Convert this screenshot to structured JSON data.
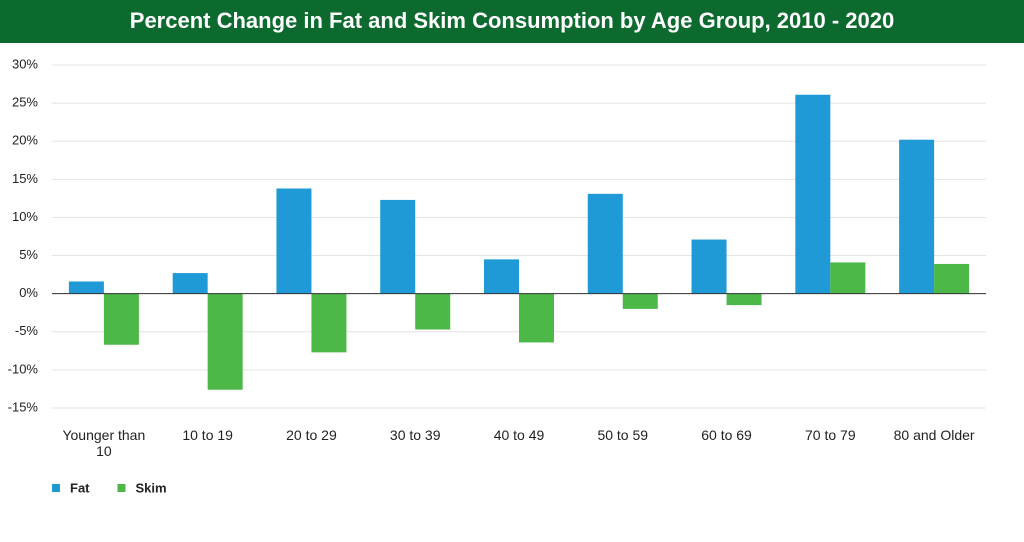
{
  "chart_data": {
    "type": "bar",
    "title": "Percent Change in Fat and Skim Consumption by Age Group, 2010 - 2020",
    "categories": [
      "Younger than 10",
      "10 to 19",
      "20 to 29",
      "30 to 39",
      "40 to 49",
      "50 to 59",
      "60 to 69",
      "70 to 79",
      "80 and Older"
    ],
    "series": [
      {
        "name": "Fat",
        "color": "#1f9ad6",
        "values": [
          1.6,
          2.7,
          13.8,
          12.3,
          4.5,
          13.1,
          7.1,
          26.1,
          20.2
        ]
      },
      {
        "name": "Skim",
        "color": "#4cb848",
        "values": [
          -6.7,
          -12.6,
          -7.7,
          -4.7,
          -6.4,
          -2.0,
          -1.5,
          4.1,
          3.9
        ]
      }
    ],
    "ylim": [
      -15,
      30
    ],
    "yticks": [
      {
        "value": -15,
        "label": "-15%"
      },
      {
        "value": -10,
        "label": "-10%"
      },
      {
        "value": -5,
        "label": "-5%"
      },
      {
        "value": 0,
        "label": "0%"
      },
      {
        "value": 5,
        "label": "5%"
      },
      {
        "value": 10,
        "label": "10%"
      },
      {
        "value": 15,
        "label": "15%"
      },
      {
        "value": 20,
        "label": "20%"
      },
      {
        "value": 25,
        "label": "25%"
      },
      {
        "value": 30,
        "label": "30%"
      }
    ],
    "grid": true,
    "legend": "bottom-left"
  }
}
